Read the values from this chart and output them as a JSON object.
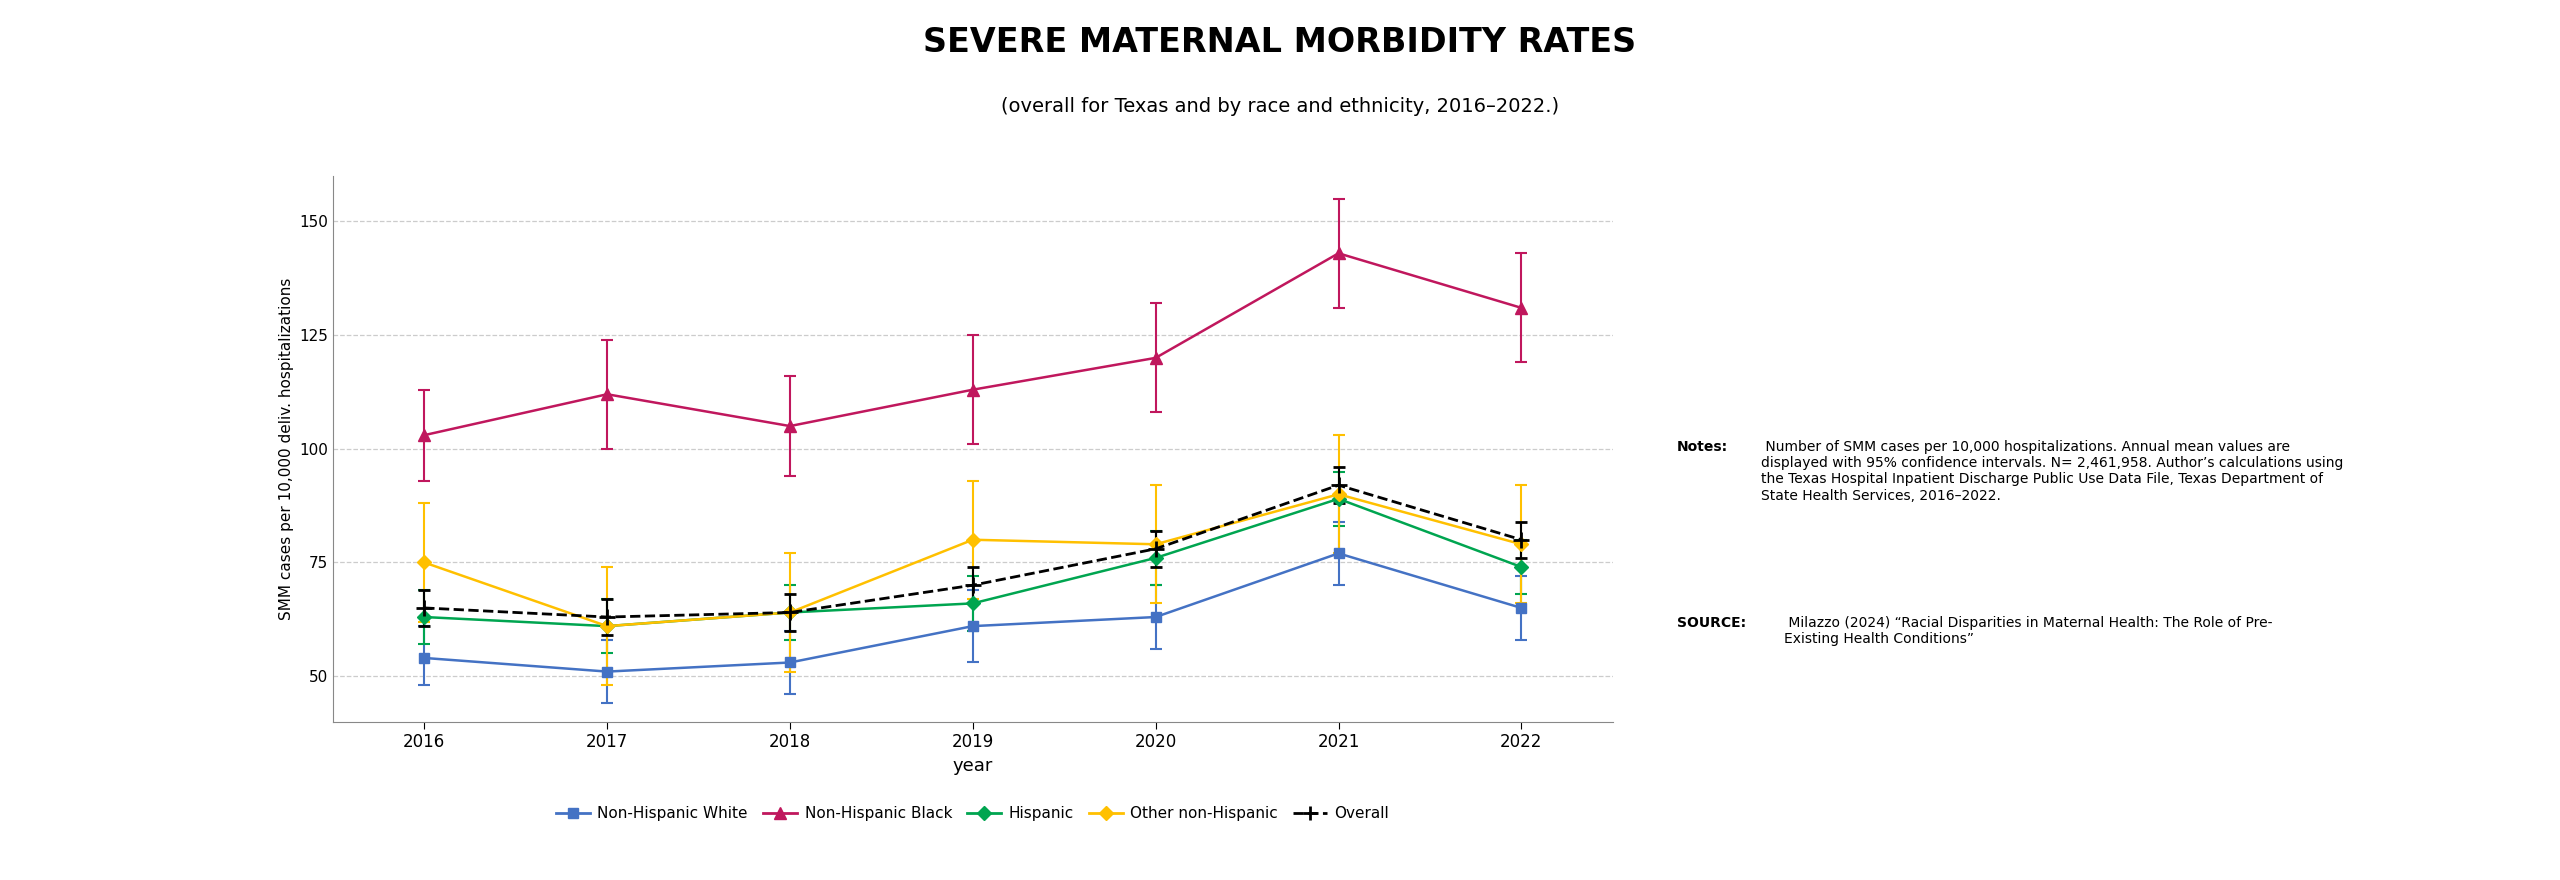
{
  "title": "SEVERE MATERNAL MORBIDITY RATES",
  "subtitle": "(overall for Texas and by race and ethnicity, 2016–2022.)",
  "xlabel": "year",
  "ylabel": "SMM cases per 10,000 deliv. hospitalizations",
  "years": [
    2016,
    2017,
    2018,
    2019,
    2020,
    2021,
    2022
  ],
  "series": {
    "Non-Hispanic White": {
      "color": "#4472C4",
      "marker": "s",
      "linestyle": "-",
      "values": [
        54,
        51,
        53,
        61,
        63,
        77,
        65
      ],
      "ci_lower": [
        48,
        44,
        46,
        53,
        56,
        70,
        58
      ],
      "ci_upper": [
        61,
        58,
        60,
        69,
        70,
        84,
        72
      ]
    },
    "Non-Hispanic Black": {
      "color": "#C0175D",
      "marker": "^",
      "linestyle": "-",
      "values": [
        103,
        112,
        105,
        113,
        120,
        143,
        131
      ],
      "ci_lower": [
        93,
        100,
        94,
        101,
        108,
        131,
        119
      ],
      "ci_upper": [
        113,
        124,
        116,
        125,
        132,
        155,
        143
      ]
    },
    "Hispanic": {
      "color": "#00A550",
      "marker": "D",
      "linestyle": "-",
      "values": [
        63,
        61,
        64,
        66,
        76,
        89,
        74
      ],
      "ci_lower": [
        57,
        55,
        58,
        60,
        70,
        83,
        68
      ],
      "ci_upper": [
        69,
        67,
        70,
        72,
        82,
        95,
        80
      ]
    },
    "Other non-Hispanic": {
      "color": "#FFC000",
      "marker": "D",
      "linestyle": "-",
      "values": [
        75,
        61,
        64,
        80,
        79,
        90,
        79
      ],
      "ci_lower": [
        62,
        48,
        51,
        67,
        66,
        77,
        66
      ],
      "ci_upper": [
        88,
        74,
        77,
        93,
        92,
        103,
        92
      ]
    },
    "Overall": {
      "color": "#000000",
      "marker": "+",
      "linestyle": "--",
      "values": [
        65,
        63,
        64,
        70,
        78,
        92,
        80
      ],
      "ci_lower": [
        61,
        59,
        60,
        66,
        74,
        88,
        76
      ],
      "ci_upper": [
        69,
        67,
        68,
        74,
        82,
        96,
        84
      ]
    }
  },
  "ylim": [
    40,
    160
  ],
  "yticks": [
    50,
    75,
    100,
    125,
    150
  ],
  "background_color": "#ffffff",
  "grid_color": "#cccccc",
  "notes_bold": "Notes:",
  "notes_text": " Number of SMM cases per 10,000 hospitalizations. Annual mean values are\ndisplayed with 95% confidence intervals. N= 2,461,958. Author’s calculations using\nthe Texas Hospital Inpatient Discharge Public Use Data File, Texas Department of\nState Health Services, 2016–2022.",
  "source_bold": "SOURCE:",
  "source_text": " Milazzo (2024) “Racial Disparities in Maternal Health: The Role of Pre-\nExisting Health Conditions”"
}
